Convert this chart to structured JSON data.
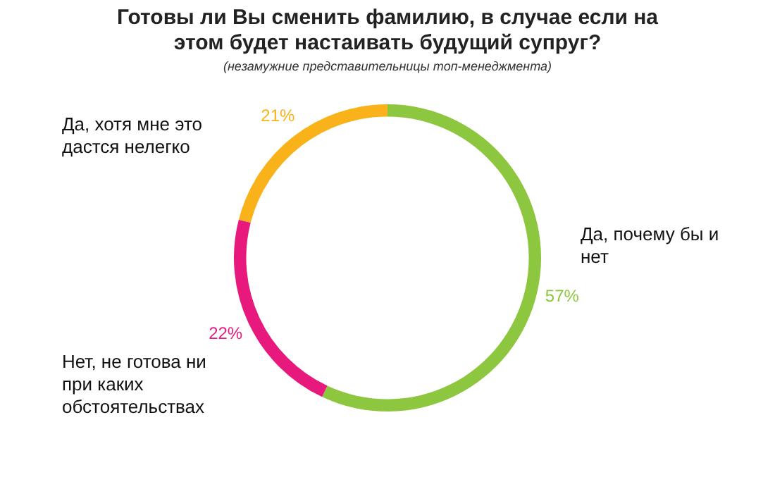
{
  "chart_data": {
    "type": "donut",
    "title": "Готовы ли Вы сменить фамилию, в случае если на этом будет настаивать будущий супруг?",
    "subtitle": "(незамужние представительницы топ-менеджмента)",
    "categories": [
      "Да, почему бы и нет",
      "Нет, не готова ни при каких обстоятельствах",
      "Да, хотя мне это дастся нелегко"
    ],
    "values": [
      57,
      22,
      21
    ],
    "colors": [
      "#8dc63f",
      "#e8197d",
      "#f9b219"
    ],
    "value_labels": [
      "57%",
      "22%",
      "21%"
    ],
    "legend": false
  }
}
